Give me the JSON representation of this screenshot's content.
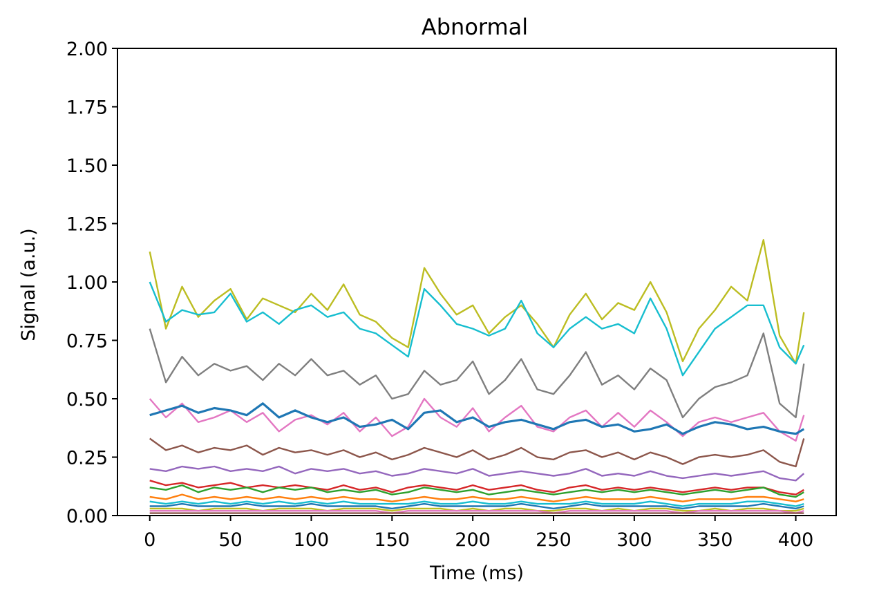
{
  "chart_data": {
    "type": "line",
    "title": "Abnormal",
    "xlabel": "Time (ms)",
    "ylabel": "Signal (a.u.)",
    "xlim": [
      -20,
      425
    ],
    "ylim": [
      0.0,
      2.0
    ],
    "xticks": [
      0,
      50,
      100,
      150,
      200,
      250,
      300,
      350,
      400
    ],
    "xtick_labels": [
      "0",
      "50",
      "100",
      "150",
      "200",
      "250",
      "300",
      "350",
      "400"
    ],
    "yticks": [
      0.0,
      0.25,
      0.5,
      0.75,
      1.0,
      1.25,
      1.5,
      1.75,
      2.0
    ],
    "ytick_labels": [
      "0.00",
      "0.25",
      "0.50",
      "0.75",
      "1.00",
      "1.25",
      "1.50",
      "1.75",
      "2.00"
    ],
    "grid": false,
    "legend": "none",
    "x": [
      0,
      10,
      20,
      30,
      40,
      50,
      60,
      70,
      80,
      90,
      100,
      110,
      120,
      130,
      140,
      150,
      160,
      170,
      180,
      190,
      200,
      210,
      220,
      230,
      240,
      250,
      260,
      270,
      280,
      290,
      300,
      310,
      320,
      330,
      340,
      350,
      360,
      370,
      380,
      390,
      400,
      405
    ],
    "series": [
      {
        "color": "#bcbd22",
        "values": [
          1.13,
          0.8,
          0.98,
          0.85,
          0.92,
          0.97,
          0.84,
          0.93,
          0.9,
          0.87,
          0.95,
          0.88,
          0.99,
          0.86,
          0.83,
          0.76,
          0.72,
          1.06,
          0.95,
          0.86,
          0.9,
          0.78,
          0.85,
          0.9,
          0.82,
          0.72,
          0.86,
          0.95,
          0.84,
          0.91,
          0.88,
          1.0,
          0.87,
          0.66,
          0.8,
          0.88,
          0.98,
          0.92,
          1.18,
          0.77,
          0.65,
          0.87
        ]
      },
      {
        "color": "#17becf",
        "values": [
          1.0,
          0.83,
          0.88,
          0.86,
          0.87,
          0.95,
          0.83,
          0.87,
          0.82,
          0.88,
          0.9,
          0.85,
          0.87,
          0.8,
          0.78,
          0.73,
          0.68,
          0.97,
          0.9,
          0.82,
          0.8,
          0.77,
          0.8,
          0.92,
          0.78,
          0.72,
          0.8,
          0.85,
          0.8,
          0.82,
          0.78,
          0.93,
          0.8,
          0.6,
          0.7,
          0.8,
          0.85,
          0.9,
          0.9,
          0.72,
          0.65,
          0.73
        ]
      },
      {
        "color": "#7f7f7f",
        "values": [
          0.8,
          0.57,
          0.68,
          0.6,
          0.65,
          0.62,
          0.64,
          0.58,
          0.65,
          0.6,
          0.67,
          0.6,
          0.62,
          0.56,
          0.6,
          0.5,
          0.52,
          0.62,
          0.56,
          0.58,
          0.66,
          0.52,
          0.58,
          0.67,
          0.54,
          0.52,
          0.6,
          0.7,
          0.56,
          0.6,
          0.54,
          0.63,
          0.58,
          0.42,
          0.5,
          0.55,
          0.57,
          0.6,
          0.78,
          0.48,
          0.42,
          0.65
        ]
      },
      {
        "color": "#e377c2",
        "values": [
          0.5,
          0.42,
          0.48,
          0.4,
          0.42,
          0.45,
          0.4,
          0.44,
          0.36,
          0.41,
          0.43,
          0.39,
          0.44,
          0.36,
          0.42,
          0.34,
          0.38,
          0.5,
          0.42,
          0.38,
          0.46,
          0.36,
          0.42,
          0.47,
          0.38,
          0.36,
          0.42,
          0.45,
          0.38,
          0.44,
          0.38,
          0.45,
          0.4,
          0.34,
          0.4,
          0.42,
          0.4,
          0.42,
          0.44,
          0.36,
          0.32,
          0.43
        ]
      },
      {
        "color": "#1f77b4",
        "values": [
          0.43,
          0.45,
          0.47,
          0.44,
          0.46,
          0.45,
          0.43,
          0.48,
          0.42,
          0.45,
          0.42,
          0.4,
          0.42,
          0.38,
          0.39,
          0.41,
          0.37,
          0.44,
          0.45,
          0.4,
          0.42,
          0.38,
          0.4,
          0.41,
          0.39,
          0.37,
          0.4,
          0.41,
          0.38,
          0.39,
          0.36,
          0.37,
          0.39,
          0.35,
          0.38,
          0.4,
          0.39,
          0.37,
          0.38,
          0.36,
          0.35,
          0.37
        ]
      },
      {
        "color": "#8c564b",
        "values": [
          0.33,
          0.28,
          0.3,
          0.27,
          0.29,
          0.28,
          0.3,
          0.26,
          0.29,
          0.27,
          0.28,
          0.26,
          0.28,
          0.25,
          0.27,
          0.24,
          0.26,
          0.29,
          0.27,
          0.25,
          0.28,
          0.24,
          0.26,
          0.29,
          0.25,
          0.24,
          0.27,
          0.28,
          0.25,
          0.27,
          0.24,
          0.27,
          0.25,
          0.22,
          0.25,
          0.26,
          0.25,
          0.26,
          0.28,
          0.23,
          0.21,
          0.33
        ]
      },
      {
        "color": "#9467bd",
        "values": [
          0.2,
          0.19,
          0.21,
          0.2,
          0.21,
          0.19,
          0.2,
          0.19,
          0.21,
          0.18,
          0.2,
          0.19,
          0.2,
          0.18,
          0.19,
          0.17,
          0.18,
          0.2,
          0.19,
          0.18,
          0.2,
          0.17,
          0.18,
          0.19,
          0.18,
          0.17,
          0.18,
          0.2,
          0.17,
          0.18,
          0.17,
          0.19,
          0.17,
          0.16,
          0.17,
          0.18,
          0.17,
          0.18,
          0.19,
          0.16,
          0.15,
          0.18
        ]
      },
      {
        "color": "#d62728",
        "values": [
          0.15,
          0.13,
          0.14,
          0.12,
          0.13,
          0.14,
          0.12,
          0.13,
          0.12,
          0.13,
          0.12,
          0.11,
          0.13,
          0.11,
          0.12,
          0.1,
          0.12,
          0.13,
          0.12,
          0.11,
          0.13,
          0.11,
          0.12,
          0.13,
          0.11,
          0.1,
          0.12,
          0.13,
          0.11,
          0.12,
          0.11,
          0.12,
          0.11,
          0.1,
          0.11,
          0.12,
          0.11,
          0.12,
          0.12,
          0.1,
          0.09,
          0.11
        ]
      },
      {
        "color": "#2ca02c",
        "values": [
          0.12,
          0.11,
          0.13,
          0.1,
          0.12,
          0.11,
          0.12,
          0.1,
          0.12,
          0.11,
          0.12,
          0.1,
          0.11,
          0.1,
          0.11,
          0.09,
          0.1,
          0.12,
          0.11,
          0.1,
          0.11,
          0.09,
          0.1,
          0.11,
          0.1,
          0.09,
          0.1,
          0.11,
          0.1,
          0.11,
          0.1,
          0.11,
          0.1,
          0.09,
          0.1,
          0.11,
          0.1,
          0.11,
          0.12,
          0.09,
          0.08,
          0.1
        ]
      },
      {
        "color": "#ff7f0e",
        "values": [
          0.08,
          0.07,
          0.09,
          0.07,
          0.08,
          0.07,
          0.08,
          0.07,
          0.08,
          0.07,
          0.08,
          0.07,
          0.08,
          0.07,
          0.07,
          0.06,
          0.07,
          0.08,
          0.07,
          0.07,
          0.08,
          0.07,
          0.07,
          0.08,
          0.07,
          0.06,
          0.07,
          0.08,
          0.07,
          0.07,
          0.07,
          0.08,
          0.07,
          0.06,
          0.07,
          0.07,
          0.07,
          0.08,
          0.08,
          0.07,
          0.06,
          0.07
        ]
      },
      {
        "color": "#17becf",
        "values": [
          0.06,
          0.05,
          0.06,
          0.05,
          0.06,
          0.05,
          0.06,
          0.05,
          0.06,
          0.05,
          0.06,
          0.05,
          0.06,
          0.05,
          0.05,
          0.05,
          0.05,
          0.06,
          0.05,
          0.05,
          0.06,
          0.05,
          0.05,
          0.06,
          0.05,
          0.05,
          0.05,
          0.06,
          0.05,
          0.05,
          0.05,
          0.06,
          0.05,
          0.04,
          0.05,
          0.05,
          0.05,
          0.06,
          0.06,
          0.05,
          0.04,
          0.05
        ]
      },
      {
        "color": "#1f77b4",
        "values": [
          0.04,
          0.04,
          0.05,
          0.04,
          0.04,
          0.04,
          0.05,
          0.04,
          0.04,
          0.04,
          0.05,
          0.04,
          0.04,
          0.04,
          0.04,
          0.03,
          0.04,
          0.05,
          0.04,
          0.04,
          0.04,
          0.04,
          0.04,
          0.05,
          0.04,
          0.03,
          0.04,
          0.05,
          0.04,
          0.04,
          0.04,
          0.04,
          0.04,
          0.03,
          0.04,
          0.04,
          0.04,
          0.04,
          0.05,
          0.04,
          0.03,
          0.04
        ]
      },
      {
        "color": "#bcbd22",
        "values": [
          0.03,
          0.03,
          0.03,
          0.02,
          0.03,
          0.03,
          0.03,
          0.02,
          0.03,
          0.03,
          0.03,
          0.02,
          0.03,
          0.03,
          0.03,
          0.02,
          0.03,
          0.03,
          0.03,
          0.02,
          0.03,
          0.02,
          0.03,
          0.03,
          0.02,
          0.02,
          0.03,
          0.03,
          0.02,
          0.03,
          0.02,
          0.03,
          0.03,
          0.02,
          0.02,
          0.03,
          0.02,
          0.03,
          0.03,
          0.02,
          0.02,
          0.03
        ]
      },
      {
        "color": "#e377c2",
        "values": [
          0.02,
          0.02,
          0.02,
          0.02,
          0.02,
          0.02,
          0.02,
          0.02,
          0.02,
          0.02,
          0.02,
          0.02,
          0.02,
          0.02,
          0.02,
          0.01,
          0.02,
          0.02,
          0.02,
          0.02,
          0.02,
          0.02,
          0.02,
          0.02,
          0.02,
          0.01,
          0.02,
          0.02,
          0.02,
          0.02,
          0.02,
          0.02,
          0.02,
          0.01,
          0.02,
          0.02,
          0.02,
          0.02,
          0.02,
          0.02,
          0.01,
          0.02
        ]
      },
      {
        "color": "#8c564b",
        "values": [
          0.01,
          0.01,
          0.01,
          0.01,
          0.01,
          0.01,
          0.01,
          0.01,
          0.01,
          0.01,
          0.01,
          0.01,
          0.01,
          0.01,
          0.01,
          0.01,
          0.01,
          0.01,
          0.01,
          0.01,
          0.01,
          0.01,
          0.01,
          0.01,
          0.01,
          0.01,
          0.01,
          0.01,
          0.01,
          0.01,
          0.01,
          0.01,
          0.01,
          0.01,
          0.01,
          0.01,
          0.01,
          0.01,
          0.01,
          0.01,
          0.01,
          0.01
        ]
      }
    ]
  }
}
